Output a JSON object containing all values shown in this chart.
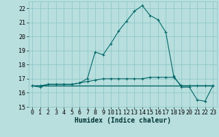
{
  "title": "",
  "xlabel": "Humidex (Indice chaleur)",
  "bg_color": "#b8dede",
  "grid_color": "#90c8c8",
  "line_color": "#006666",
  "x_data": [
    0,
    1,
    2,
    3,
    4,
    5,
    6,
    7,
    8,
    9,
    10,
    11,
    12,
    13,
    14,
    15,
    16,
    17,
    18,
    19,
    20,
    21,
    22,
    23
  ],
  "series1": [
    16.5,
    16.4,
    16.6,
    16.6,
    16.6,
    16.6,
    16.7,
    17.0,
    18.9,
    18.7,
    19.5,
    20.4,
    21.1,
    21.8,
    22.2,
    21.5,
    21.2,
    20.3,
    17.2,
    16.4,
    16.4,
    15.5,
    15.4,
    16.5
  ],
  "series2": [
    16.5,
    16.5,
    16.6,
    16.6,
    16.6,
    16.6,
    16.7,
    16.8,
    16.9,
    17.0,
    17.0,
    17.0,
    17.0,
    17.0,
    17.0,
    17.1,
    17.1,
    17.1,
    17.1,
    16.5,
    16.5,
    16.5,
    16.5,
    16.5
  ],
  "series3": [
    16.5,
    16.5,
    16.5,
    16.5,
    16.5,
    16.5,
    16.5,
    16.5,
    16.5,
    16.5,
    16.5,
    16.5,
    16.5,
    16.5,
    16.5,
    16.5,
    16.5,
    16.5,
    16.5,
    16.5,
    16.5,
    16.5,
    16.5,
    16.5
  ],
  "ylim": [
    15,
    22.5
  ],
  "xlim": [
    -0.5,
    23.5
  ],
  "yticks": [
    15,
    16,
    17,
    18,
    19,
    20,
    21,
    22
  ],
  "xticks": [
    0,
    1,
    2,
    3,
    4,
    5,
    6,
    7,
    8,
    9,
    10,
    11,
    12,
    13,
    14,
    15,
    16,
    17,
    18,
    19,
    20,
    21,
    22,
    23
  ],
  "tick_fontsize": 6,
  "xlabel_fontsize": 7
}
